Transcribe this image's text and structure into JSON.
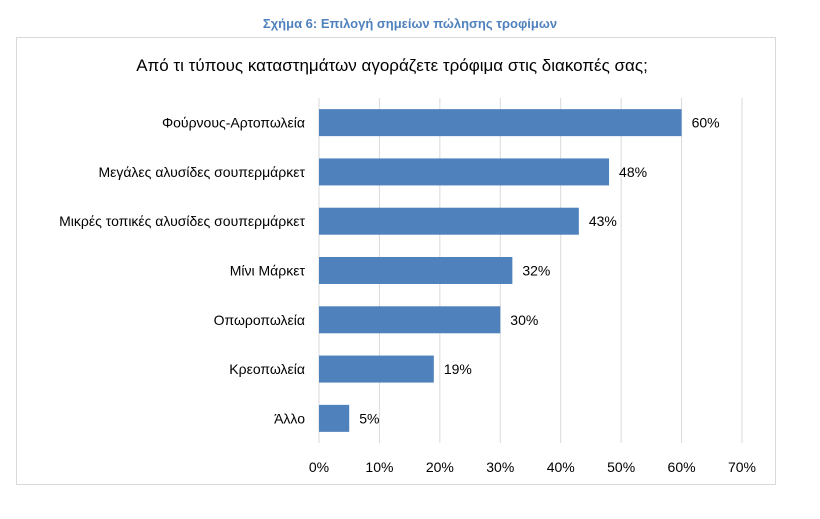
{
  "caption": "Σχήμα 6: Επιλογή σημείων πώλησης τροφίμων",
  "chart_data": {
    "type": "bar",
    "orientation": "horizontal",
    "title": "Από τι τύπους καταστημάτων αγοράζετε τρόφιμα στις διακοπές σας;",
    "xlabel": "",
    "ylabel": "",
    "categories": [
      "Φούρνους-Αρτοπωλεία",
      "Μεγάλες αλυσίδες σουπερμάρκετ",
      "Μικρές τοπικές αλυσίδες σουπερμάρκετ",
      "Μίνι Μάρκετ",
      "Οπωροπωλεία",
      "Κρεοπωλεία",
      "Άλλο"
    ],
    "values": [
      60,
      48,
      43,
      32,
      30,
      19,
      5
    ],
    "value_labels": [
      "60%",
      "48%",
      "43%",
      "32%",
      "30%",
      "19%",
      "5%"
    ],
    "xlim": [
      0,
      70
    ],
    "xticks": [
      0,
      10,
      20,
      30,
      40,
      50,
      60,
      70
    ],
    "xtick_labels": [
      "0%",
      "10%",
      "20%",
      "30%",
      "40%",
      "50%",
      "60%",
      "70%"
    ],
    "gridlines": true,
    "bar_color": "#4f81bd",
    "grid_color": "#d9d9d9",
    "legend": "none"
  }
}
